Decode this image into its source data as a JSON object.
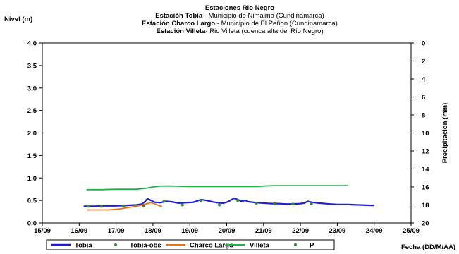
{
  "chart_data": {
    "type": "line",
    "title_lines": [
      {
        "bold": "Estaciones Rio Negro",
        "normal": ""
      },
      {
        "bold": "Estación Tobia",
        "normal": " - Municipio de Nimaima (Cundinamarca)"
      },
      {
        "bold": "Estación Charco Largo",
        "normal": " - Municipio de El Peñon (Cundinamarca)"
      },
      {
        "bold": "Estación Villeta",
        "normal": "- Rio Villeta (cuenca alta del Río Negro)"
      }
    ],
    "ylabel_left": "Nivel (m)",
    "ylabel_right": "Precipitacion (mm)",
    "xlabel": "Fecha (DD/M/AA)",
    "x_ticks": [
      "15/09",
      "16/09",
      "17/09",
      "18/09",
      "19/09",
      "20/09",
      "21/09",
      "22/09",
      "23/09",
      "24/09",
      "25/09"
    ],
    "y_left": {
      "min": 0,
      "max": 4.0,
      "ticks": [
        "0.0",
        "0.5",
        "1.0",
        "1.5",
        "2.0",
        "2.5",
        "3.0",
        "3.5",
        "4.0"
      ]
    },
    "y_right": {
      "min": 0,
      "max": 20,
      "inverted": true,
      "ticks": [
        "0",
        "2",
        "4",
        "6",
        "8",
        "10",
        "12",
        "14",
        "16",
        "18",
        "20"
      ]
    },
    "x_range": [
      15,
      25
    ],
    "grid": false,
    "legend_position": "bottom",
    "series": [
      {
        "name": "Tobia",
        "kind": "line",
        "color": "#1f1fd0",
        "points": [
          [
            16.12,
            0.37
          ],
          [
            16.4,
            0.37
          ],
          [
            16.7,
            0.38
          ],
          [
            17.0,
            0.38
          ],
          [
            17.3,
            0.39
          ],
          [
            17.55,
            0.4
          ],
          [
            17.7,
            0.42
          ],
          [
            17.78,
            0.47
          ],
          [
            17.85,
            0.54
          ],
          [
            17.95,
            0.5
          ],
          [
            18.05,
            0.46
          ],
          [
            18.2,
            0.45
          ],
          [
            18.35,
            0.48
          ],
          [
            18.5,
            0.47
          ],
          [
            18.7,
            0.44
          ],
          [
            18.9,
            0.45
          ],
          [
            19.1,
            0.46
          ],
          [
            19.2,
            0.49
          ],
          [
            19.3,
            0.52
          ],
          [
            19.45,
            0.5
          ],
          [
            19.6,
            0.47
          ],
          [
            19.75,
            0.45
          ],
          [
            19.9,
            0.44
          ],
          [
            20.0,
            0.46
          ],
          [
            20.1,
            0.5
          ],
          [
            20.2,
            0.55
          ],
          [
            20.3,
            0.52
          ],
          [
            20.4,
            0.48
          ],
          [
            20.5,
            0.5
          ],
          [
            20.6,
            0.47
          ],
          [
            20.8,
            0.45
          ],
          [
            21.0,
            0.44
          ],
          [
            21.2,
            0.43
          ],
          [
            21.4,
            0.43
          ],
          [
            21.6,
            0.42
          ],
          [
            21.8,
            0.42
          ],
          [
            22.0,
            0.43
          ],
          [
            22.1,
            0.44
          ],
          [
            22.2,
            0.48
          ],
          [
            22.3,
            0.46
          ],
          [
            22.5,
            0.44
          ],
          [
            22.8,
            0.42
          ],
          [
            23.0,
            0.41
          ],
          [
            23.3,
            0.41
          ],
          [
            23.6,
            0.4
          ],
          [
            23.9,
            0.39
          ],
          [
            24.0,
            0.39
          ]
        ]
      },
      {
        "name": "Tobia-obs",
        "kind": "markers",
        "color": "#2e8b2e",
        "points": [
          [
            16.25,
            0.37
          ],
          [
            16.6,
            0.37
          ],
          [
            17.2,
            0.38
          ],
          [
            17.5,
            0.39
          ],
          [
            17.75,
            0.38
          ],
          [
            18.3,
            0.48
          ],
          [
            18.8,
            0.4
          ],
          [
            19.3,
            0.5
          ],
          [
            19.8,
            0.4
          ],
          [
            20.3,
            0.5
          ],
          [
            20.8,
            0.44
          ],
          [
            21.3,
            0.43
          ],
          [
            21.8,
            0.42
          ],
          [
            22.3,
            0.43
          ]
        ]
      },
      {
        "name": "Charco Largo",
        "kind": "line",
        "color": "#e8731c",
        "points": [
          [
            16.22,
            0.29
          ],
          [
            16.5,
            0.29
          ],
          [
            16.8,
            0.29
          ],
          [
            17.1,
            0.31
          ],
          [
            17.3,
            0.34
          ],
          [
            17.55,
            0.37
          ],
          [
            17.8,
            0.42
          ],
          [
            17.95,
            0.45
          ],
          [
            18.1,
            0.41
          ],
          [
            18.25,
            0.36
          ]
        ]
      },
      {
        "name": "Villeta",
        "kind": "line",
        "color": "#22b14c",
        "points": [
          [
            16.2,
            0.74
          ],
          [
            16.6,
            0.74
          ],
          [
            17.0,
            0.75
          ],
          [
            17.3,
            0.75
          ],
          [
            17.55,
            0.75
          ],
          [
            17.8,
            0.77
          ],
          [
            18.0,
            0.8
          ],
          [
            18.2,
            0.82
          ],
          [
            18.5,
            0.82
          ],
          [
            19.0,
            0.81
          ],
          [
            19.5,
            0.81
          ],
          [
            20.0,
            0.81
          ],
          [
            20.5,
            0.81
          ],
          [
            20.8,
            0.81
          ],
          [
            21.0,
            0.82
          ],
          [
            21.3,
            0.83
          ],
          [
            21.6,
            0.83
          ],
          [
            22.0,
            0.83
          ],
          [
            22.5,
            0.83
          ],
          [
            23.0,
            0.83
          ],
          [
            23.3,
            0.83
          ]
        ]
      },
      {
        "name": "P",
        "kind": "markers",
        "color": "#2e8b2e",
        "points": []
      }
    ]
  }
}
